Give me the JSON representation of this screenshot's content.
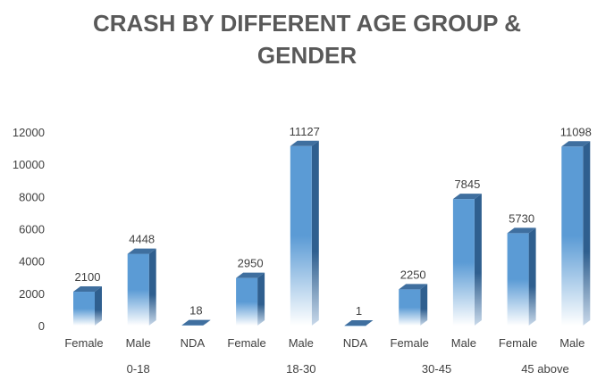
{
  "chart_data": {
    "type": "bar",
    "title_lines": [
      "CRASH BY DIFFERENT AGE GROUP &",
      "GENDER"
    ],
    "xlabel": "",
    "ylabel": "",
    "ylim": [
      0,
      12000
    ],
    "yticks": [
      0,
      2000,
      4000,
      6000,
      8000,
      10000,
      12000
    ],
    "grid": false,
    "legend": "none",
    "bar_color": "#5b9bd5",
    "bar_side_color": "#2f5f8f",
    "bar_top_color": "#3f6f9f",
    "categories": [
      "Female",
      "Male",
      "NDA",
      "Female",
      "Male",
      "NDA",
      "Female",
      "Male",
      "Female",
      "Male"
    ],
    "values": [
      2100,
      4448,
      18,
      2950,
      11127,
      1,
      2250,
      7845,
      5730,
      11098
    ],
    "groups": [
      {
        "label": "0-18",
        "span": [
          0,
          2
        ]
      },
      {
        "label": "18-30",
        "span": [
          3,
          5
        ]
      },
      {
        "label": "30-45",
        "span": [
          6,
          7
        ]
      },
      {
        "label": "45 above",
        "span": [
          8,
          9
        ]
      }
    ]
  }
}
